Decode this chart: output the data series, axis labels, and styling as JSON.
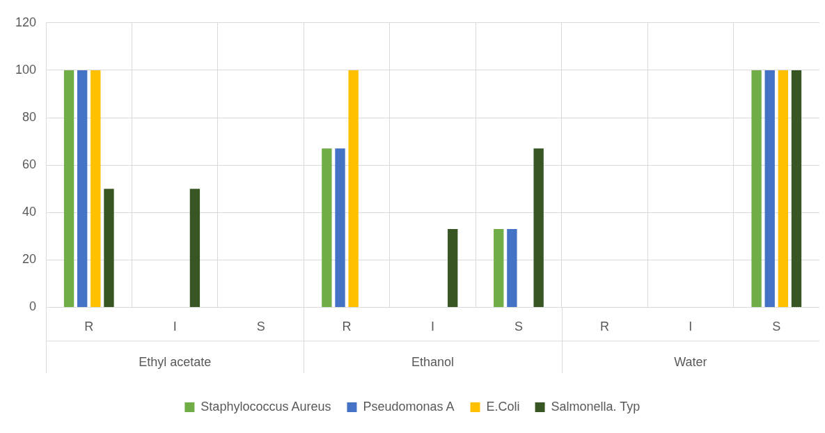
{
  "chart_data": {
    "type": "bar",
    "categories": [
      "R",
      "I",
      "S",
      "R",
      "I",
      "S",
      "R",
      "I",
      "S"
    ],
    "series": [
      {
        "name": "Staphylococcus Aureus",
        "color": "#70ad47",
        "values": [
          100,
          0,
          0,
          67,
          0,
          33,
          0,
          0,
          100
        ]
      },
      {
        "name": "Pseudomonas A",
        "color": "#4472c4",
        "values": [
          100,
          0,
          0,
          67,
          0,
          33,
          0,
          0,
          100
        ]
      },
      {
        "name": "E.Coli",
        "color": "#ffc000",
        "values": [
          100,
          0,
          0,
          100,
          0,
          0,
          0,
          0,
          100
        ]
      },
      {
        "name": "Salmonella. Typ",
        "color": "#375623",
        "values": [
          50,
          50,
          0,
          0,
          33,
          67,
          0,
          0,
          100
        ]
      }
    ],
    "annotations": [
      "Ethyl acetate",
      "Ethanol",
      "Water"
    ],
    "ylim": [
      0,
      120
    ],
    "yticks": [
      0,
      20,
      40,
      60,
      80,
      100,
      120
    ],
    "grid": true,
    "legend": "bottom"
  }
}
